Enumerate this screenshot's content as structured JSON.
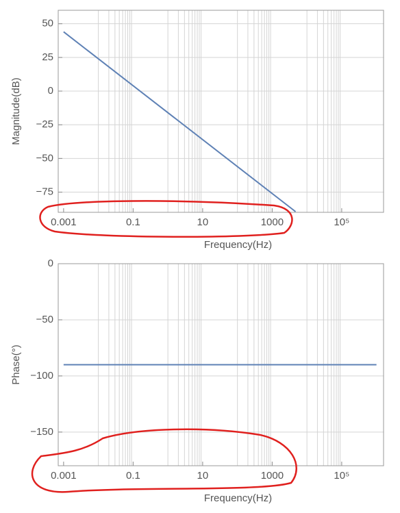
{
  "chart_data": [
    {
      "type": "line",
      "ylabel": "Magnitude(dB)",
      "xlabel": "Frequency(Hz)",
      "xscale": "log",
      "xlim": [
        0.0007,
        1600000
      ],
      "ylim": [
        -90,
        60
      ],
      "xticks": [
        0.001,
        0.1,
        10,
        1000,
        {
          "value": 100000,
          "label": "10⁵"
        }
      ],
      "yticks": [
        50,
        25,
        0,
        {
          "value": -25,
          "label": "−25"
        },
        {
          "value": -50,
          "label": "−50"
        },
        {
          "value": -75,
          "label": "−75"
        }
      ],
      "xgrid": [
        0.01,
        0.02,
        0.03,
        0.04,
        0.05,
        0.06,
        0.07,
        0.08,
        0.09,
        1,
        2,
        3,
        4,
        5,
        6,
        7,
        8,
        9,
        100,
        200,
        300,
        400,
        500,
        600,
        700,
        800,
        900,
        10000,
        20000,
        30000,
        40000,
        50000,
        60000,
        70000,
        80000,
        90000
      ],
      "grid": true,
      "x": [
        0.001,
        4700
      ],
      "series": [
        {
          "color": "#5e81b5",
          "values": [
            44,
            -89.5
          ]
        }
      ]
    },
    {
      "type": "line",
      "ylabel": "Phase(°)",
      "xlabel": "Frequency(Hz)",
      "xscale": "log",
      "xlim": [
        0.0007,
        1600000
      ],
      "ylim": [
        -180,
        0
      ],
      "xticks": [
        0.001,
        0.1,
        10,
        1000,
        {
          "value": 100000,
          "label": "10⁵"
        }
      ],
      "yticks": [
        0,
        {
          "value": -50,
          "label": "−50"
        },
        {
          "value": -100,
          "label": "−100"
        },
        {
          "value": -150,
          "label": "−150"
        }
      ],
      "xgrid": [
        0.01,
        0.02,
        0.03,
        0.04,
        0.05,
        0.06,
        0.07,
        0.08,
        0.09,
        1,
        2,
        3,
        4,
        5,
        6,
        7,
        8,
        9,
        100,
        200,
        300,
        400,
        500,
        600,
        700,
        800,
        900,
        10000,
        20000,
        30000,
        40000,
        50000,
        60000,
        70000,
        80000,
        90000
      ],
      "grid": true,
      "x": [
        0.001,
        1000000
      ],
      "series": [
        {
          "color": "#5e81b5",
          "values": [
            -90,
            -90
          ]
        }
      ]
    }
  ]
}
